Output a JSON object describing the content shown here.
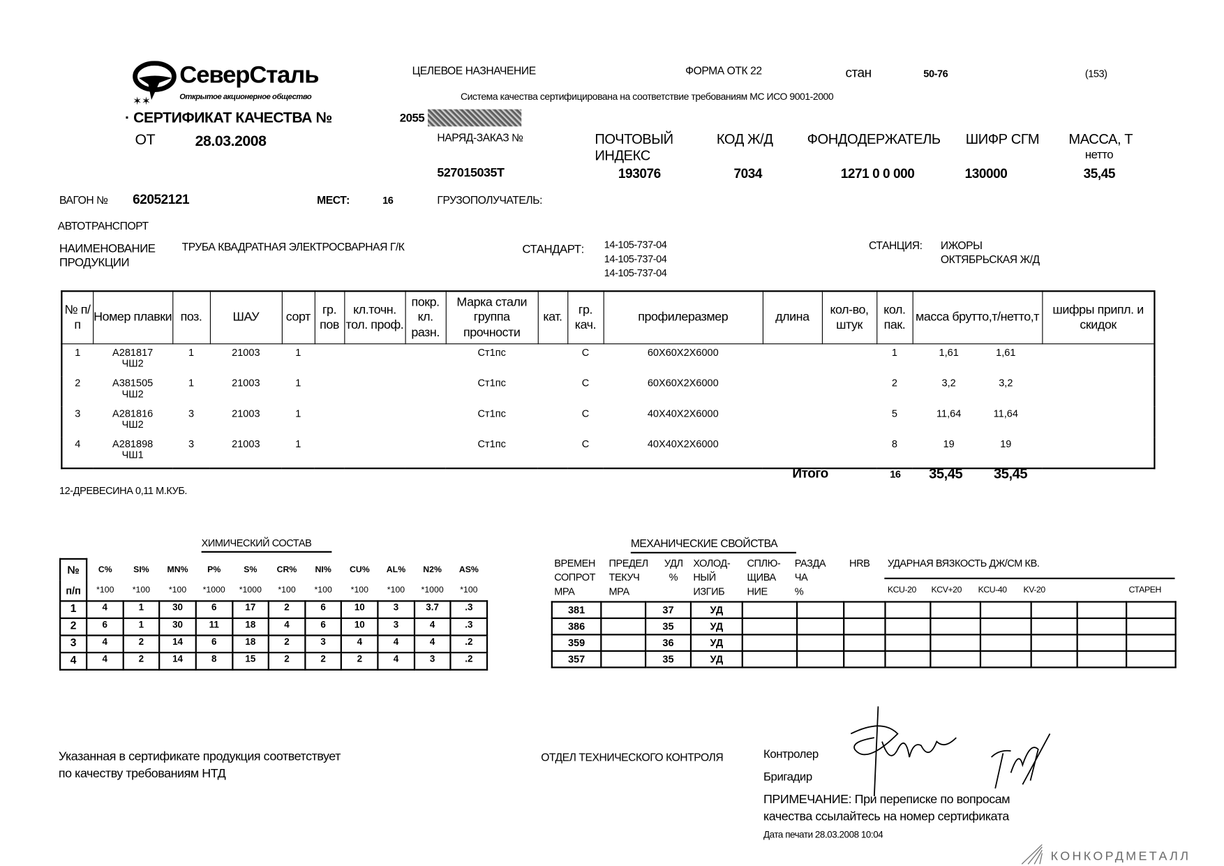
{
  "logo": {
    "company": "СеверСталь",
    "subtitle": "Открытое акционерное общество"
  },
  "header": {
    "purpose_label": "ЦЕЛЕВОЕ НАЗНАЧЕНИЕ",
    "form_label": "ФОРМА ОТК 22",
    "mill_label": "стан",
    "mill_value": "50-76",
    "page_code": "(153)",
    "quality_system": "Система качества сертифицирована на соответствие требованиям МС ИСО 9001-2000",
    "certificate_title": "СЕРТИФИКАТ КАЧЕСТВА №",
    "certificate_number_visible": "2055",
    "date_label": "ОТ",
    "date_value": "28.03.2008"
  },
  "order_info": {
    "columns": [
      {
        "label": "НАРЯД-ЗАКАЗ №",
        "value": "527015035Т"
      },
      {
        "label": "ПОЧТОВЫЙ ИНДЕКС",
        "value": "193076"
      },
      {
        "label": "КОД Ж/Д",
        "value": "7034"
      },
      {
        "label": "ФОНДОДЕРЖАТЕЛЬ",
        "value": "1271 0 0 000"
      },
      {
        "label": "ШИФР СГМ",
        "value": "130000"
      },
      {
        "label": "МАССА, Т",
        "sublabel": "нетто",
        "value": "35,45"
      }
    ]
  },
  "shipment": {
    "wagon_label": "ВАГОН №",
    "wagon_value": "62052121",
    "places_label": "МЕСТ:",
    "places_value": "16",
    "consignee_label": "ГРУЗОПОЛУЧАТЕЛЬ:",
    "transport": "АВТОТРАНСПОРТ",
    "product_label_1": "НАИМЕНОВАНИЕ",
    "product_label_2": "ПРОДУКЦИИ",
    "product_value": "ТРУБА КВАДРАТНАЯ ЭЛЕКТРОСВАРНАЯ Г/К",
    "standard_label": "СТАНДАРТ:",
    "standards": [
      "14-105-737-04",
      "14-105-737-04",
      "14-105-737-04"
    ],
    "station_label": "СТАНЦИЯ:",
    "station_value": "ИЖОРЫ",
    "railway_value": "ОКТЯБРЬСКАЯ Ж/Д"
  },
  "main_table": {
    "headers": [
      "№ п/п",
      "Номер плавки",
      "поз.",
      "ШАУ",
      "сорт",
      "гр. пов",
      "кл.точн. тол. проф.",
      "покр. кл. разн.",
      "Марка стали группа прочности",
      "кат.",
      "гр. кач.",
      "профилеразмер",
      "длина",
      "кол-во, штук",
      "кол. пак.",
      "масса брутто,т/нетто,т",
      "шифры припл. и скидок"
    ],
    "rows": [
      {
        "n": "1",
        "heat": "А281817",
        "heat2": "ЧШ2",
        "pos": "1",
        "shau": "21003",
        "sort": "1",
        "steel": "Ст1пс",
        "quality": "С",
        "profile": "60Х60Х2Х6000",
        "packs": "1",
        "gross": "1,61",
        "net": "1,61"
      },
      {
        "n": "2",
        "heat": "А381505",
        "heat2": "ЧШ2",
        "pos": "1",
        "shau": "21003",
        "sort": "1",
        "steel": "Ст1пс",
        "quality": "С",
        "profile": "60Х60Х2Х6000",
        "packs": "2",
        "gross": "3,2",
        "net": "3,2"
      },
      {
        "n": "3",
        "heat": "А281816",
        "heat2": "ЧШ2",
        "pos": "3",
        "shau": "21003",
        "sort": "1",
        "steel": "Ст1пс",
        "quality": "С",
        "profile": "40Х40Х2Х6000",
        "packs": "5",
        "gross": "11,64",
        "net": "11,64"
      },
      {
        "n": "4",
        "heat": "А281898",
        "heat2": "ЧШ1",
        "pos": "3",
        "shau": "21003",
        "sort": "1",
        "steel": "Ст1пс",
        "quality": "С",
        "profile": "40Х40Х2Х6000",
        "packs": "8",
        "gross": "19",
        "net": "19"
      }
    ],
    "total_label": "Итого",
    "total_packs": "16",
    "total_gross": "35,45",
    "total_net": "35,45"
  },
  "extra_note": "12-ДРЕВЕСИНА 0,11 М.КУБ.",
  "chemistry": {
    "title": "ХИМИЧЕСКИЙ СОСТАВ",
    "num_label_1": "№",
    "num_label_2": "п/п",
    "elements": [
      "C%",
      "SI%",
      "MN%",
      "P%",
      "S%",
      "CR%",
      "NI%",
      "CU%",
      "AL%",
      "N2%",
      "AS%"
    ],
    "multipliers": [
      "*100",
      "*100",
      "*100",
      "*1000",
      "*1000",
      "*100",
      "*100",
      "*100",
      "*100",
      "*1000",
      "*100"
    ],
    "rows": [
      [
        "1",
        "4",
        "1",
        "30",
        "6",
        "17",
        "2",
        "6",
        "10",
        "3",
        "3.7",
        ".3"
      ],
      [
        "2",
        "6",
        "1",
        "30",
        "11",
        "18",
        "4",
        "6",
        "10",
        "3",
        "4",
        ".3"
      ],
      [
        "3",
        "4",
        "2",
        "14",
        "6",
        "18",
        "2",
        "3",
        "4",
        "4",
        "4",
        ".2"
      ],
      [
        "4",
        "4",
        "2",
        "14",
        "8",
        "15",
        "2",
        "2",
        "2",
        "4",
        "3",
        ".2"
      ]
    ]
  },
  "mechanics": {
    "title": "МЕХАНИЧЕСКИЕ СВОЙСТВА",
    "headers": [
      [
        "ВРЕМЕН",
        "СОПРОТ",
        "МРА"
      ],
      [
        "ПРЕДЕЛ",
        "ТЕКУЧ",
        "МРА"
      ],
      [
        "УДЛ",
        "%",
        ""
      ],
      [
        "ХОЛОД-",
        "НЫЙ",
        "ИЗГИБ"
      ],
      [
        "СПЛЮ-",
        "ЩИВА",
        "НИЕ"
      ],
      [
        "РАЗДА",
        "ЧА",
        "%"
      ],
      [
        "HRB",
        "",
        ""
      ]
    ],
    "impact_title": "УДАРНАЯ ВЯЗКОСТЬ ДЖ/СМ КВ.",
    "impact_columns": [
      "KCU-20",
      "KCV+20",
      "KCU-40",
      "KV-20",
      "СТАРЕН"
    ],
    "rows": [
      [
        "381",
        "",
        "37",
        "УД"
      ],
      [
        "386",
        "",
        "35",
        "УД"
      ],
      [
        "359",
        "",
        "36",
        "УД"
      ],
      [
        "357",
        "",
        "35",
        "УД"
      ]
    ]
  },
  "footer": {
    "conformity_1": "Указанная в сертификате продукция соответствует",
    "conformity_2": "по качеству требованиям НТД",
    "department": "ОТДЕЛ ТЕХНИЧЕСКОГО КОНТРОЛЯ",
    "controller_label": "Контролер",
    "foreman_label": "Бригадир",
    "note_1": "ПРИМЕЧАНИЕ: При переписке по вопросам",
    "note_2": "качества ссылайтесь на номер сертификата",
    "print_date": "Дата печати 28.03.2008 10:04"
  },
  "watermark": {
    "text": "КОНКОРДМЕТАЛЛ",
    "color": "#6b6b6b"
  }
}
